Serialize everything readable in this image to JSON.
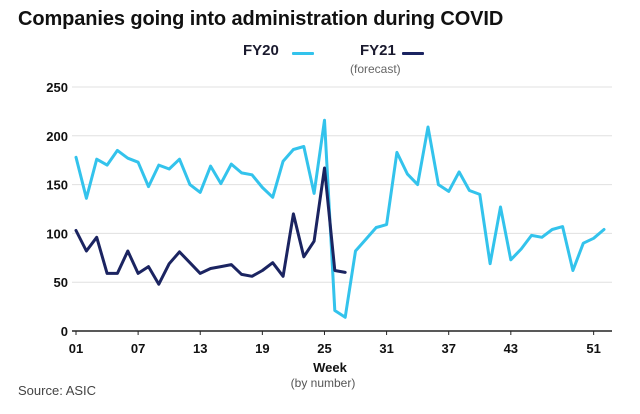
{
  "chart_data": {
    "type": "line",
    "title": "Companies going into administration during COVID",
    "xlabel": "Week",
    "xlabel_sub": "(by number)",
    "ylabel": "",
    "ylim": [
      0,
      250
    ],
    "xlim": [
      1,
      52
    ],
    "yticks": [
      0,
      50,
      100,
      150,
      200,
      250
    ],
    "xticks": [
      1,
      7,
      13,
      19,
      25,
      31,
      37,
      43,
      51
    ],
    "xtick_labels": [
      "01",
      "07",
      "13",
      "19",
      "25",
      "31",
      "37",
      "43",
      "51"
    ],
    "grid": "horizontal",
    "legend": "top",
    "series": [
      {
        "name": "FY20",
        "color": "#33c3ec",
        "x": [
          1,
          2,
          3,
          4,
          5,
          6,
          7,
          8,
          9,
          10,
          11,
          12,
          13,
          14,
          15,
          16,
          17,
          18,
          19,
          20,
          21,
          22,
          23,
          24,
          25,
          26,
          27,
          28,
          29,
          30,
          31,
          32,
          33,
          34,
          35,
          36,
          37,
          38,
          39,
          40,
          41,
          42,
          43,
          44,
          45,
          46,
          47,
          48,
          49,
          50,
          51,
          52
        ],
        "values": [
          178,
          136,
          176,
          170,
          185,
          177,
          173,
          148,
          170,
          166,
          176,
          150,
          142,
          169,
          151,
          171,
          162,
          160,
          147,
          137,
          174,
          186,
          189,
          141,
          216,
          21,
          14,
          82,
          94,
          106,
          109,
          183,
          161,
          150,
          209,
          150,
          143,
          163,
          144,
          140,
          69,
          127,
          73,
          84,
          98,
          96,
          104,
          107,
          62,
          90,
          95,
          104
        ]
      },
      {
        "name": "FY21",
        "note": "(forecast)",
        "color": "#1b2461",
        "x": [
          1,
          2,
          3,
          4,
          5,
          6,
          7,
          8,
          9,
          10,
          11,
          12,
          13,
          14,
          15,
          16,
          17,
          18,
          19,
          20,
          21,
          22,
          23,
          24,
          25,
          26,
          27
        ],
        "values": [
          103,
          82,
          96,
          59,
          59,
          82,
          59,
          66,
          48,
          69,
          81,
          70,
          59,
          64,
          66,
          68,
          58,
          56,
          62,
          70,
          56,
          120,
          76,
          92,
          167,
          62,
          60
        ]
      }
    ],
    "source": "Source: ASIC"
  },
  "colors": {
    "fy20": "#33c3ec",
    "fy21": "#1b2461",
    "grid": "#e0e0e0",
    "axis": "#222222"
  }
}
